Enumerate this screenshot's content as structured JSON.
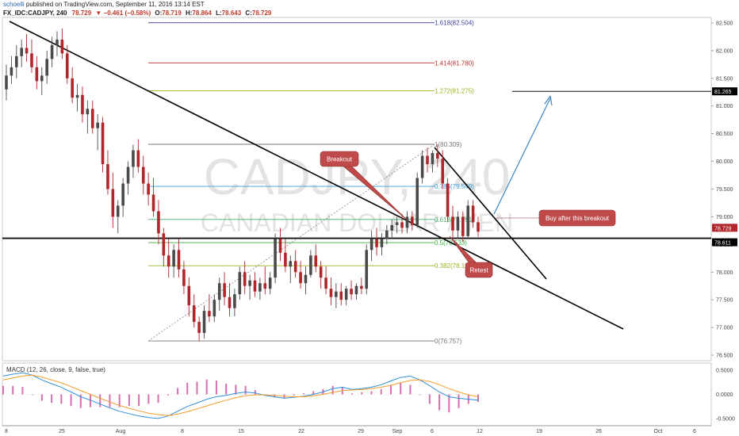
{
  "header": {
    "user": "schoelli",
    "published": " published on TradingView.com, September 11, 2016 13:14 EST",
    "symbol": "FX_IDC:CADJPY, 240",
    "last": "78.729",
    "change": "▼ −0.461 (−0.58%)",
    "o_label": "O:",
    "o": "78.719",
    "h_label": "H:",
    "h": "78.864",
    "l_label": "L:",
    "l": "78.643",
    "c_label": "C:",
    "c": "78.729"
  },
  "watermark": {
    "symbol": "CADJPY, 240",
    "name": "CANADIAN DOLLAR / YEN"
  },
  "colors": {
    "up": "#4a4a4a",
    "down": "#b0262b",
    "macd_line": "#2f8fd8",
    "signal_line": "#f39c2a",
    "hist": "#d66fb0",
    "callout": "#c04a4a",
    "target_arrow": "#3d86c6"
  },
  "chart_data": [
    {
      "type": "candlestick",
      "xlabel": "",
      "ylabel": "",
      "ylim": [
        76.4,
        82.6
      ],
      "x_ticks": [
        "8",
        "25",
        "Aug",
        "8",
        "15",
        "22",
        "29",
        "Sep",
        "6",
        "12",
        "19",
        "26",
        "Oct",
        "6"
      ],
      "y_ticks": [
        "82.500",
        "82.000",
        "81.500",
        "81.000",
        "80.500",
        "80.000",
        "79.500",
        "79.000",
        "78.500",
        "78.000",
        "77.500",
        "77.000",
        "76.500"
      ],
      "price_tags": [
        "81.265",
        "78.729",
        "78.611"
      ],
      "fib_levels": [
        {
          "label": "1.618(82.504)",
          "value": 82.504,
          "color": "#3f3fa0"
        },
        {
          "label": "1.414(81.780)",
          "value": 81.78,
          "color": "#c03030"
        },
        {
          "label": "1.272(81.275)",
          "value": 81.275,
          "color": "#9ab520"
        },
        {
          "label": "1(80.309)",
          "value": 80.309,
          "color": "#777777"
        },
        {
          "label": "0.786(79.549)",
          "value": 79.549,
          "color": "#3d9ad6"
        },
        {
          "label": "0.618(78.951)",
          "value": 78.951,
          "color": "#3fae6a"
        },
        {
          "label": "0.5(78.533)",
          "value": 78.533,
          "color": "#3fae3f"
        },
        {
          "label": "0.382(78.115)",
          "value": 78.115,
          "color": "#9ab520"
        },
        {
          "label": "0(76.757)",
          "value": 76.757,
          "color": "#777777"
        }
      ],
      "support_level": 78.611,
      "target_level": 81.265,
      "annotations": [
        "Breakout",
        "Buy after this breakout",
        "Retest"
      ],
      "candles": [
        {
          "o": 81.3,
          "h": 81.75,
          "l": 81.1,
          "c": 81.55
        },
        {
          "o": 81.55,
          "h": 81.9,
          "l": 81.4,
          "c": 81.7
        },
        {
          "o": 81.7,
          "h": 82.1,
          "l": 81.5,
          "c": 81.9
        },
        {
          "o": 81.9,
          "h": 82.2,
          "l": 81.7,
          "c": 82.05
        },
        {
          "o": 82.05,
          "h": 82.3,
          "l": 81.8,
          "c": 81.95
        },
        {
          "o": 81.95,
          "h": 82.2,
          "l": 81.6,
          "c": 81.7
        },
        {
          "o": 81.7,
          "h": 81.9,
          "l": 81.3,
          "c": 81.45
        },
        {
          "o": 81.45,
          "h": 81.7,
          "l": 81.2,
          "c": 81.55
        },
        {
          "o": 81.55,
          "h": 82.0,
          "l": 81.4,
          "c": 81.85
        },
        {
          "o": 81.85,
          "h": 82.25,
          "l": 81.7,
          "c": 82.1
        },
        {
          "o": 82.1,
          "h": 82.35,
          "l": 81.9,
          "c": 82.2
        },
        {
          "o": 82.2,
          "h": 82.4,
          "l": 81.85,
          "c": 81.95
        },
        {
          "o": 81.95,
          "h": 82.1,
          "l": 81.4,
          "c": 81.5
        },
        {
          "o": 81.5,
          "h": 81.7,
          "l": 81.05,
          "c": 81.15
        },
        {
          "o": 81.15,
          "h": 81.4,
          "l": 80.9,
          "c": 81.2
        },
        {
          "o": 81.2,
          "h": 81.35,
          "l": 80.7,
          "c": 80.85
        },
        {
          "o": 80.85,
          "h": 81.1,
          "l": 80.5,
          "c": 80.95
        },
        {
          "o": 80.95,
          "h": 81.1,
          "l": 80.5,
          "c": 80.6
        },
        {
          "o": 80.6,
          "h": 80.85,
          "l": 80.2,
          "c": 80.7
        },
        {
          "o": 80.7,
          "h": 80.8,
          "l": 79.8,
          "c": 79.95
        },
        {
          "o": 79.95,
          "h": 80.2,
          "l": 79.4,
          "c": 79.5
        },
        {
          "o": 79.5,
          "h": 79.8,
          "l": 78.8,
          "c": 79.0
        },
        {
          "o": 79.0,
          "h": 79.3,
          "l": 78.7,
          "c": 79.2
        },
        {
          "o": 79.2,
          "h": 79.7,
          "l": 79.0,
          "c": 79.6
        },
        {
          "o": 79.6,
          "h": 80.0,
          "l": 79.4,
          "c": 79.9
        },
        {
          "o": 79.9,
          "h": 80.3,
          "l": 79.7,
          "c": 80.2
        },
        {
          "o": 80.2,
          "h": 80.4,
          "l": 79.8,
          "c": 79.9
        },
        {
          "o": 79.9,
          "h": 80.1,
          "l": 79.4,
          "c": 79.6
        },
        {
          "o": 79.6,
          "h": 79.8,
          "l": 79.2,
          "c": 79.4
        },
        {
          "o": 79.4,
          "h": 79.7,
          "l": 79.0,
          "c": 79.1
        },
        {
          "o": 79.1,
          "h": 79.3,
          "l": 78.5,
          "c": 78.7
        },
        {
          "o": 78.7,
          "h": 78.8,
          "l": 78.1,
          "c": 78.3
        },
        {
          "o": 78.3,
          "h": 78.6,
          "l": 77.9,
          "c": 78.1
        },
        {
          "o": 78.1,
          "h": 78.5,
          "l": 77.9,
          "c": 78.4
        },
        {
          "o": 78.4,
          "h": 78.6,
          "l": 77.9,
          "c": 78.05
        },
        {
          "o": 78.05,
          "h": 78.2,
          "l": 77.6,
          "c": 77.75
        },
        {
          "o": 77.75,
          "h": 77.9,
          "l": 77.2,
          "c": 77.4
        },
        {
          "o": 77.4,
          "h": 77.6,
          "l": 77.0,
          "c": 77.1
        },
        {
          "o": 77.1,
          "h": 77.2,
          "l": 76.75,
          "c": 76.9
        },
        {
          "o": 76.9,
          "h": 77.4,
          "l": 76.8,
          "c": 77.3
        },
        {
          "o": 77.3,
          "h": 77.6,
          "l": 77.1,
          "c": 77.2
        },
        {
          "o": 77.2,
          "h": 77.6,
          "l": 77.1,
          "c": 77.5
        },
        {
          "o": 77.5,
          "h": 77.9,
          "l": 77.3,
          "c": 77.8
        },
        {
          "o": 77.8,
          "h": 78.0,
          "l": 77.4,
          "c": 77.55
        },
        {
          "o": 77.55,
          "h": 77.8,
          "l": 77.2,
          "c": 77.35
        },
        {
          "o": 77.35,
          "h": 77.7,
          "l": 77.2,
          "c": 77.6
        },
        {
          "o": 77.6,
          "h": 78.1,
          "l": 77.5,
          "c": 78.0
        },
        {
          "o": 78.0,
          "h": 78.2,
          "l": 77.6,
          "c": 77.75
        },
        {
          "o": 77.75,
          "h": 77.95,
          "l": 77.5,
          "c": 77.85
        },
        {
          "o": 77.85,
          "h": 78.0,
          "l": 77.55,
          "c": 77.65
        },
        {
          "o": 77.65,
          "h": 77.9,
          "l": 77.5,
          "c": 77.8
        },
        {
          "o": 77.8,
          "h": 78.1,
          "l": 77.6,
          "c": 77.7
        },
        {
          "o": 77.7,
          "h": 78.0,
          "l": 77.6,
          "c": 77.9
        },
        {
          "o": 77.9,
          "h": 78.7,
          "l": 77.8,
          "c": 78.6
        },
        {
          "o": 78.6,
          "h": 78.8,
          "l": 78.2,
          "c": 78.35
        },
        {
          "o": 78.35,
          "h": 78.6,
          "l": 78.0,
          "c": 78.1
        },
        {
          "o": 78.1,
          "h": 78.3,
          "l": 77.8,
          "c": 78.2
        },
        {
          "o": 78.2,
          "h": 78.4,
          "l": 77.9,
          "c": 78.0
        },
        {
          "o": 78.0,
          "h": 78.2,
          "l": 77.7,
          "c": 77.8
        },
        {
          "o": 77.8,
          "h": 78.1,
          "l": 77.6,
          "c": 77.95
        },
        {
          "o": 77.95,
          "h": 78.4,
          "l": 77.9,
          "c": 78.3
        },
        {
          "o": 78.3,
          "h": 78.5,
          "l": 78.0,
          "c": 78.1
        },
        {
          "o": 78.1,
          "h": 78.2,
          "l": 77.7,
          "c": 77.9
        },
        {
          "o": 77.9,
          "h": 78.1,
          "l": 77.6,
          "c": 77.7
        },
        {
          "o": 77.7,
          "h": 77.9,
          "l": 77.4,
          "c": 77.55
        },
        {
          "o": 77.55,
          "h": 77.8,
          "l": 77.35,
          "c": 77.65
        },
        {
          "o": 77.65,
          "h": 77.8,
          "l": 77.4,
          "c": 77.5
        },
        {
          "o": 77.5,
          "h": 77.75,
          "l": 77.4,
          "c": 77.7
        },
        {
          "o": 77.7,
          "h": 77.85,
          "l": 77.5,
          "c": 77.6
        },
        {
          "o": 77.6,
          "h": 77.8,
          "l": 77.5,
          "c": 77.75
        },
        {
          "o": 77.75,
          "h": 77.9,
          "l": 77.6,
          "c": 77.7
        },
        {
          "o": 77.7,
          "h": 78.5,
          "l": 77.6,
          "c": 78.4
        },
        {
          "o": 78.4,
          "h": 78.75,
          "l": 78.2,
          "c": 78.6
        },
        {
          "o": 78.6,
          "h": 78.8,
          "l": 78.3,
          "c": 78.45
        },
        {
          "o": 78.45,
          "h": 78.7,
          "l": 78.3,
          "c": 78.6
        },
        {
          "o": 78.6,
          "h": 78.85,
          "l": 78.5,
          "c": 78.75
        },
        {
          "o": 78.75,
          "h": 78.95,
          "l": 78.6,
          "c": 78.85
        },
        {
          "o": 78.85,
          "h": 79.0,
          "l": 78.7,
          "c": 78.9
        },
        {
          "o": 78.9,
          "h": 79.05,
          "l": 78.7,
          "c": 78.8
        },
        {
          "o": 78.8,
          "h": 79.1,
          "l": 78.7,
          "c": 79.0
        },
        {
          "o": 79.0,
          "h": 79.1,
          "l": 78.75,
          "c": 78.85
        },
        {
          "o": 78.85,
          "h": 79.8,
          "l": 78.8,
          "c": 79.7
        },
        {
          "o": 79.7,
          "h": 80.2,
          "l": 79.6,
          "c": 80.1
        },
        {
          "o": 80.1,
          "h": 80.25,
          "l": 79.8,
          "c": 79.95
        },
        {
          "o": 79.95,
          "h": 80.2,
          "l": 79.8,
          "c": 80.15
        },
        {
          "o": 80.15,
          "h": 80.31,
          "l": 79.9,
          "c": 80.05
        },
        {
          "o": 80.05,
          "h": 80.2,
          "l": 79.5,
          "c": 79.6
        },
        {
          "o": 79.6,
          "h": 79.7,
          "l": 78.9,
          "c": 79.0
        },
        {
          "o": 79.0,
          "h": 79.2,
          "l": 78.6,
          "c": 78.75
        },
        {
          "o": 78.75,
          "h": 79.1,
          "l": 78.6,
          "c": 79.0
        },
        {
          "o": 79.0,
          "h": 79.1,
          "l": 78.55,
          "c": 78.65
        },
        {
          "o": 78.65,
          "h": 79.3,
          "l": 78.6,
          "c": 79.2
        },
        {
          "o": 79.2,
          "h": 79.3,
          "l": 78.8,
          "c": 78.9
        },
        {
          "o": 78.9,
          "h": 79.0,
          "l": 78.64,
          "c": 78.73
        }
      ]
    },
    {
      "type": "line",
      "title": "MACD (12, 26, close, 9, false, true)",
      "ylim": [
        -0.65,
        0.65
      ],
      "y_ticks": [
        "0.5000",
        "0.0000",
        "-0.5000"
      ],
      "series": [
        {
          "values": [
            0.38,
            0.42,
            0.45,
            0.4,
            0.3,
            0.22,
            0.15,
            0.05,
            -0.05,
            -0.12,
            -0.2,
            -0.28,
            -0.35,
            -0.4,
            -0.45,
            -0.48,
            -0.5,
            -0.45,
            -0.35,
            -0.25,
            -0.18,
            -0.1,
            -0.05,
            -0.02,
            0.02,
            0.05,
            0.03,
            -0.02,
            -0.05,
            -0.08,
            -0.06,
            -0.04,
            0.0,
            0.05,
            0.12,
            0.15,
            0.1,
            0.12,
            0.15,
            0.2,
            0.28,
            0.35,
            0.38,
            0.3,
            0.18,
            0.05,
            -0.05,
            -0.08,
            -0.1,
            -0.12
          ]
        },
        {
          "values": [
            0.3,
            0.34,
            0.38,
            0.4,
            0.36,
            0.3,
            0.24,
            0.16,
            0.08,
            0.0,
            -0.08,
            -0.16,
            -0.23,
            -0.29,
            -0.34,
            -0.39,
            -0.42,
            -0.44,
            -0.41,
            -0.36,
            -0.3,
            -0.24,
            -0.18,
            -0.12,
            -0.07,
            -0.03,
            -0.01,
            -0.01,
            -0.02,
            -0.04,
            -0.05,
            -0.05,
            -0.03,
            0.0,
            0.04,
            0.08,
            0.09,
            0.1,
            0.12,
            0.15,
            0.19,
            0.24,
            0.29,
            0.3,
            0.27,
            0.2,
            0.12,
            0.05,
            -0.01,
            -0.05
          ]
        }
      ]
    }
  ]
}
